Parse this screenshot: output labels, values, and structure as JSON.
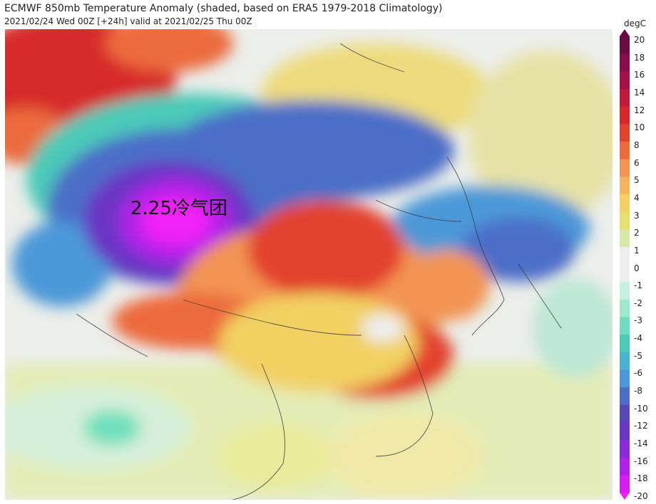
{
  "header": {
    "title": "ECMWF 850mb Temperature Anomaly (shaded, based on ERA5 1979-2018 Climatology)",
    "subtitle": "2021/02/24 Wed 00Z [+24h] valid at 2021/02/25 Thu 00Z"
  },
  "map": {
    "annotation": "2.25冷气团"
  },
  "colorbar": {
    "unit": "degC",
    "ticks": [
      "20",
      "18",
      "16",
      "14",
      "12",
      "10",
      "8",
      "6",
      "5",
      "4",
      "3",
      "2",
      "1",
      "0",
      "-1",
      "-2",
      "-3",
      "-4",
      "-5",
      "-6",
      "-8",
      "-10",
      "-12",
      "-14",
      "-16",
      "-18",
      "-20"
    ],
    "colors": [
      "#6a0a45",
      "#8a0c4a",
      "#a8104a",
      "#c41a3a",
      "#d8272a",
      "#e3432e",
      "#ec6a3c",
      "#f39452",
      "#f6b25e",
      "#f2d062",
      "#e6e072",
      "#d6e9a8",
      "#eeeeee",
      "#eeeeee",
      "#c8f0e0",
      "#9ee8cc",
      "#6fdcc0",
      "#4ccab8",
      "#4ab4d0",
      "#4c98d8",
      "#4c6ec8",
      "#5648b8",
      "#6a36c4",
      "#8a2ad8",
      "#b020e8",
      "#d81cf4",
      "#f020f8"
    ]
  }
}
